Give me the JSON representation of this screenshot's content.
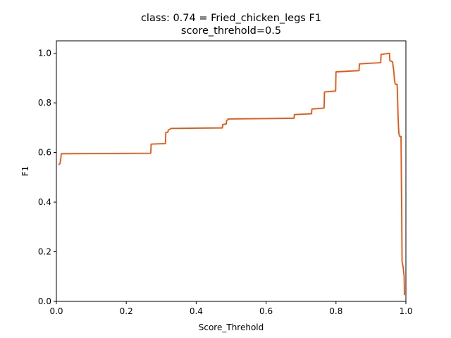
{
  "chart_data": {
    "type": "line",
    "title": "class: 0.74 = Fried_chicken_legs F1",
    "subtitle": "score_threhold=0.5",
    "xlabel": "Score_Threhold",
    "ylabel": "F1",
    "xlim": [
      0,
      1
    ],
    "ylim": [
      0,
      1.05
    ],
    "xticks": [
      "0.0",
      "0.2",
      "0.4",
      "0.6",
      "0.8",
      "1.0"
    ],
    "yticks": [
      "0.0",
      "0.2",
      "0.4",
      "0.6",
      "0.8",
      "1.0"
    ],
    "grid": false,
    "legend": "none",
    "color": "#f2500a",
    "series": [
      {
        "x": [
          0.007,
          0.008,
          0.01,
          0.011,
          0.013,
          0.014,
          0.27,
          0.271,
          0.312,
          0.313,
          0.319,
          0.32,
          0.326,
          0.327,
          0.475,
          0.476,
          0.486,
          0.487,
          0.49,
          0.491,
          0.68,
          0.681,
          0.73,
          0.731,
          0.766,
          0.767,
          0.799,
          0.8,
          0.866,
          0.867,
          0.928,
          0.929,
          0.953,
          0.954,
          0.962,
          0.965,
          0.966,
          0.968,
          0.97,
          0.975,
          0.978,
          0.979,
          0.98,
          0.982,
          0.986,
          0.988,
          0.989,
          0.992,
          0.995,
          0.996
        ],
        "y": [
          0.55,
          0.553,
          0.555,
          0.56,
          0.58,
          0.595,
          0.597,
          0.634,
          0.636,
          0.68,
          0.682,
          0.69,
          0.695,
          0.697,
          0.699,
          0.713,
          0.715,
          0.728,
          0.732,
          0.735,
          0.738,
          0.753,
          0.756,
          0.775,
          0.779,
          0.844,
          0.848,
          0.925,
          0.93,
          0.957,
          0.962,
          0.995,
          1.0,
          0.97,
          0.965,
          0.93,
          0.915,
          0.885,
          0.875,
          0.875,
          0.73,
          0.7,
          0.675,
          0.665,
          0.665,
          0.35,
          0.16,
          0.14,
          0.1,
          0.025
        ]
      }
    ]
  }
}
